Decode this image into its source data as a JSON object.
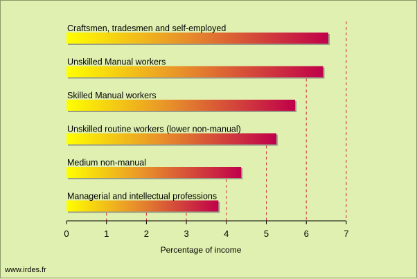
{
  "chart_data": {
    "type": "bar",
    "orientation": "horizontal",
    "categories": [
      "Craftsmen, tradesmen and self-employed",
      "Unskilled Manual workers",
      "Skilled Manual workers",
      "Unskilled routine workers (lower non-manual)",
      "Medium non-manual",
      "Managerial and intellectual professions"
    ],
    "values": [
      6.55,
      6.42,
      5.72,
      5.25,
      4.37,
      3.8
    ],
    "xlabel": "Percentage of income",
    "ylabel": "",
    "xlim": [
      0,
      7
    ],
    "xticks": [
      "0",
      "1",
      "2",
      "3",
      "4",
      "5",
      "6",
      "7"
    ],
    "gridlines": "dashed vertical",
    "colors": {
      "bar_gradient_start": "#ffff00",
      "bar_gradient_mid": "#e8902a",
      "bar_gradient_end": "#c0004a",
      "grid": "#d0303a",
      "background": "#e0f0b0"
    }
  },
  "footer": {
    "credit": "www.irdes.fr"
  }
}
